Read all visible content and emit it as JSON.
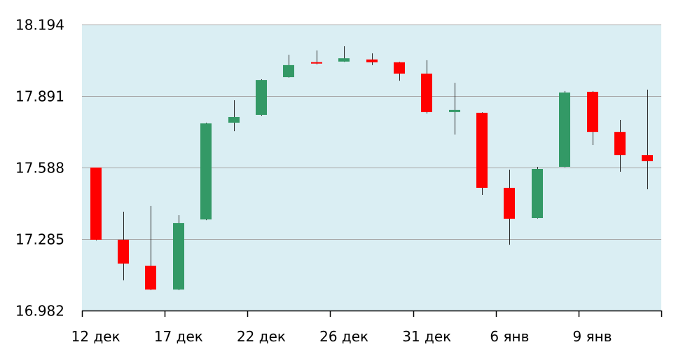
{
  "chart_data": {
    "type": "candlestick",
    "categories": [
      "12 дек",
      "",
      "",
      "17 дек",
      "",
      "",
      "22 дек",
      "",
      "",
      "26 дек",
      "",
      "",
      "31 дек",
      "",
      "",
      "6 янв",
      "",
      "",
      "9 янв",
      "",
      ""
    ],
    "open": [
      17.588,
      17.282,
      17.172,
      17.071,
      17.368,
      17.778,
      17.811,
      17.971,
      18.034,
      18.037,
      18.046,
      18.034,
      17.986,
      17.823,
      17.82,
      17.502,
      17.374,
      17.591,
      17.909,
      17.739,
      17.641
    ],
    "high": [
      17.588,
      17.401,
      17.425,
      17.386,
      17.778,
      17.873,
      17.962,
      18.066,
      18.084,
      18.102,
      18.072,
      18.036,
      18.043,
      17.947,
      17.822,
      17.579,
      17.591,
      17.912,
      17.912,
      17.79,
      17.918
    ],
    "low": [
      17.279,
      17.11,
      17.068,
      17.068,
      17.365,
      17.742,
      17.808,
      17.969,
      18.025,
      18.036,
      18.022,
      17.956,
      17.817,
      17.728,
      17.472,
      17.261,
      17.372,
      17.589,
      17.683,
      17.57,
      17.496
    ],
    "close": [
      17.282,
      17.181,
      17.071,
      17.353,
      17.775,
      17.802,
      17.959,
      18.022,
      18.029,
      18.051,
      18.034,
      17.986,
      17.823,
      17.832,
      17.502,
      17.371,
      17.582,
      17.906,
      17.739,
      17.641,
      17.615
    ],
    "y_ticks": [
      "18.194",
      "17.891",
      "17.588",
      "17.285",
      "16.982"
    ],
    "ylim": [
      16.982,
      18.194
    ],
    "grid": true,
    "colors": {
      "up": "#339966",
      "down": "#ff0000",
      "plot_background": "#daeef3",
      "gridline": "#a6a6a6",
      "axis": "#000000",
      "wick": "#262626"
    }
  }
}
